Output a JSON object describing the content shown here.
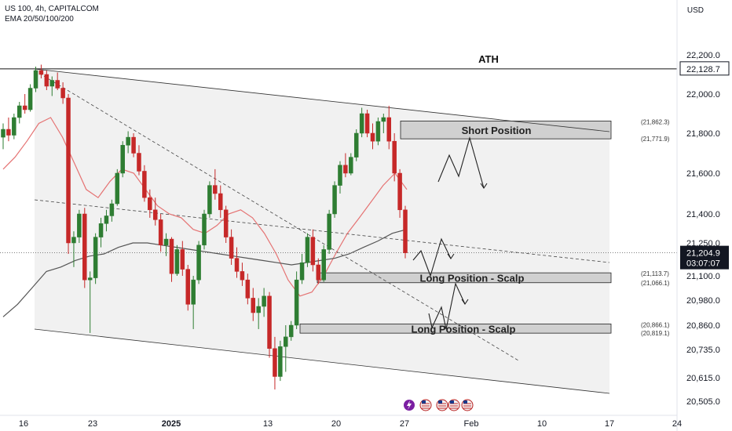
{
  "header": {
    "symbol_line": "US 100, 4h, CAPITALCOM",
    "indicator_line": "EMA 20/50/100/200",
    "currency": "USD"
  },
  "colors": {
    "up": "#2e7d32",
    "down": "#c62828",
    "ema_fast": "#e57373",
    "ema_slow": "#555555",
    "zone": "#d0d0d0",
    "channel": "#efefef",
    "price_tag": "#131722"
  },
  "chart_data": {
    "type": "candlestick",
    "symbol": "US 100",
    "timeframe": "4h",
    "y_tick_labels": [
      "22,200.0",
      "22,000.0",
      "21,800.0",
      "21,600.0",
      "21,400.0",
      "21,250.0",
      "21,100.0",
      "20,980.0",
      "20,860.0",
      "20,735.0",
      "20,615.0",
      "20,505.0"
    ],
    "x_tick_labels": [
      "16",
      "23",
      "2025",
      "13",
      "20",
      "27",
      "Feb",
      "10",
      "17",
      "24"
    ],
    "price_tags": [
      {
        "label": "22,128.7",
        "value": 22128.7,
        "style": "outline"
      },
      {
        "label": "21,204.9",
        "value": 21204.9,
        "style": "filled"
      },
      {
        "label": "03:07:07",
        "value": 21204.9,
        "style": "countdown"
      }
    ],
    "annotations": [
      {
        "text": "ATH",
        "value": 22128.7
      },
      {
        "text": "Short Position",
        "zone_top": 21862.3,
        "zone_bottom": 21771.9,
        "labels": [
          "(21,862.3)",
          "(21,771.9)"
        ]
      },
      {
        "text": "Long Position - Scalp",
        "zone_top": 21113.7,
        "zone_bottom": 21066.1,
        "labels": [
          "(21,113.7)",
          "(21,066.1)"
        ]
      },
      {
        "text": "Long Position - Scalp",
        "zone_top": 20866.1,
        "zone_bottom": 20819.1,
        "labels": [
          "(20,866.1)",
          "(20,819.1)"
        ]
      }
    ],
    "candles": [
      {
        "o": 21780,
        "h": 21850,
        "l": 21720,
        "c": 21820
      },
      {
        "o": 21820,
        "h": 21880,
        "l": 21760,
        "c": 21790
      },
      {
        "o": 21790,
        "h": 21900,
        "l": 21770,
        "c": 21880
      },
      {
        "o": 21880,
        "h": 21960,
        "l": 21850,
        "c": 21940
      },
      {
        "o": 21940,
        "h": 22000,
        "l": 21900,
        "c": 21920
      },
      {
        "o": 21920,
        "h": 22050,
        "l": 21910,
        "c": 22030
      },
      {
        "o": 22030,
        "h": 22140,
        "l": 22010,
        "c": 22120
      },
      {
        "o": 22120,
        "h": 22150,
        "l": 22080,
        "c": 22100
      },
      {
        "o": 22100,
        "h": 22120,
        "l": 22020,
        "c": 22040
      },
      {
        "o": 22040,
        "h": 22090,
        "l": 21990,
        "c": 22070
      },
      {
        "o": 22070,
        "h": 22110,
        "l": 22020,
        "c": 22030
      },
      {
        "o": 22030,
        "h": 22060,
        "l": 21950,
        "c": 21980
      },
      {
        "o": 21980,
        "h": 22000,
        "l": 21200,
        "c": 21250
      },
      {
        "o": 21250,
        "h": 21310,
        "l": 21140,
        "c": 21280
      },
      {
        "o": 21280,
        "h": 21420,
        "l": 21250,
        "c": 21400
      },
      {
        "o": 21400,
        "h": 21430,
        "l": 21040,
        "c": 21080
      },
      {
        "o": 21080,
        "h": 21120,
        "l": 20820,
        "c": 21090
      },
      {
        "o": 21090,
        "h": 21300,
        "l": 21060,
        "c": 21280
      },
      {
        "o": 21280,
        "h": 21380,
        "l": 21230,
        "c": 21350
      },
      {
        "o": 21350,
        "h": 21420,
        "l": 21310,
        "c": 21390
      },
      {
        "o": 21390,
        "h": 21470,
        "l": 21360,
        "c": 21450
      },
      {
        "o": 21450,
        "h": 21620,
        "l": 21440,
        "c": 21600
      },
      {
        "o": 21600,
        "h": 21760,
        "l": 21580,
        "c": 21740
      },
      {
        "o": 21740,
        "h": 21810,
        "l": 21700,
        "c": 21780
      },
      {
        "o": 21780,
        "h": 21800,
        "l": 21680,
        "c": 21700
      },
      {
        "o": 21700,
        "h": 21740,
        "l": 21590,
        "c": 21610
      },
      {
        "o": 21610,
        "h": 21640,
        "l": 21460,
        "c": 21480
      },
      {
        "o": 21480,
        "h": 21520,
        "l": 21380,
        "c": 21420
      },
      {
        "o": 21420,
        "h": 21480,
        "l": 21340,
        "c": 21370
      },
      {
        "o": 21370,
        "h": 21400,
        "l": 21210,
        "c": 21240
      },
      {
        "o": 21240,
        "h": 21300,
        "l": 21190,
        "c": 21270
      },
      {
        "o": 21270,
        "h": 21280,
        "l": 21070,
        "c": 21110
      },
      {
        "o": 21110,
        "h": 21240,
        "l": 21100,
        "c": 21220
      },
      {
        "o": 21220,
        "h": 21260,
        "l": 21100,
        "c": 21130
      },
      {
        "o": 21130,
        "h": 21150,
        "l": 20930,
        "c": 20960
      },
      {
        "o": 20960,
        "h": 21100,
        "l": 20840,
        "c": 21080
      },
      {
        "o": 21080,
        "h": 21260,
        "l": 21060,
        "c": 21240
      },
      {
        "o": 21240,
        "h": 21420,
        "l": 21220,
        "c": 21400
      },
      {
        "o": 21400,
        "h": 21560,
        "l": 21380,
        "c": 21540
      },
      {
        "o": 21540,
        "h": 21620,
        "l": 21470,
        "c": 21500
      },
      {
        "o": 21500,
        "h": 21540,
        "l": 21380,
        "c": 21420
      },
      {
        "o": 21420,
        "h": 21440,
        "l": 21250,
        "c": 21280
      },
      {
        "o": 21280,
        "h": 21320,
        "l": 21150,
        "c": 21180
      },
      {
        "o": 21180,
        "h": 21230,
        "l": 21090,
        "c": 21120
      },
      {
        "o": 21120,
        "h": 21160,
        "l": 21050,
        "c": 21080
      },
      {
        "o": 21080,
        "h": 21110,
        "l": 20960,
        "c": 20990
      },
      {
        "o": 20990,
        "h": 21040,
        "l": 20880,
        "c": 20920
      },
      {
        "o": 20920,
        "h": 20990,
        "l": 20840,
        "c": 20950
      },
      {
        "o": 20950,
        "h": 21040,
        "l": 20900,
        "c": 21000
      },
      {
        "o": 21000,
        "h": 21020,
        "l": 20700,
        "c": 20740
      },
      {
        "o": 20740,
        "h": 20800,
        "l": 20560,
        "c": 20620
      },
      {
        "o": 20620,
        "h": 20780,
        "l": 20600,
        "c": 20750
      },
      {
        "o": 20750,
        "h": 20860,
        "l": 20640,
        "c": 20800
      },
      {
        "o": 20800,
        "h": 20880,
        "l": 20780,
        "c": 20860
      },
      {
        "o": 20860,
        "h": 21120,
        "l": 20840,
        "c": 21080
      },
      {
        "o": 21080,
        "h": 21200,
        "l": 21060,
        "c": 21160
      },
      {
        "o": 21160,
        "h": 21300,
        "l": 21140,
        "c": 21280
      },
      {
        "o": 21280,
        "h": 21320,
        "l": 21120,
        "c": 21150
      },
      {
        "o": 21150,
        "h": 21180,
        "l": 21060,
        "c": 21080
      },
      {
        "o": 21080,
        "h": 21240,
        "l": 21070,
        "c": 21220
      },
      {
        "o": 21220,
        "h": 21420,
        "l": 21200,
        "c": 21400
      },
      {
        "o": 21400,
        "h": 21560,
        "l": 21380,
        "c": 21540
      },
      {
        "o": 21540,
        "h": 21660,
        "l": 21500,
        "c": 21640
      },
      {
        "o": 21640,
        "h": 21700,
        "l": 21580,
        "c": 21600
      },
      {
        "o": 21600,
        "h": 21700,
        "l": 21590,
        "c": 21680
      },
      {
        "o": 21680,
        "h": 21820,
        "l": 21660,
        "c": 21800
      },
      {
        "o": 21800,
        "h": 21930,
        "l": 21780,
        "c": 21900
      },
      {
        "o": 21900,
        "h": 21920,
        "l": 21780,
        "c": 21800
      },
      {
        "o": 21800,
        "h": 21850,
        "l": 21720,
        "c": 21760
      },
      {
        "o": 21760,
        "h": 21880,
        "l": 21740,
        "c": 21860
      },
      {
        "o": 21860,
        "h": 21900,
        "l": 21800,
        "c": 21880
      },
      {
        "o": 21880,
        "h": 21940,
        "l": 21720,
        "c": 21760
      },
      {
        "o": 21760,
        "h": 21800,
        "l": 21560,
        "c": 21600
      },
      {
        "o": 21600,
        "h": 21620,
        "l": 21380,
        "c": 21420
      },
      {
        "o": 21420,
        "h": 21440,
        "l": 21180,
        "c": 21204.9
      }
    ],
    "ema_20_50": [
      21620,
      21680,
      21760,
      21850,
      21880,
      21780,
      21650,
      21520,
      21480,
      21560,
      21620,
      21600,
      21520,
      21440,
      21400,
      21380,
      21320,
      21300,
      21340,
      21400,
      21420,
      21380,
      21300,
      21200,
      21080,
      21000,
      21020,
      21100,
      21200,
      21300,
      21380,
      21460,
      21540,
      21600,
      21520
    ],
    "ema_100_200": [
      20900,
      20960,
      21040,
      21120,
      21140,
      21170,
      21190,
      21200,
      21230,
      21250,
      21250,
      21240,
      21230,
      21220,
      21210,
      21200,
      21190,
      21180,
      21170,
      21160,
      21150,
      21160,
      21170,
      21180,
      21200,
      21230,
      21260,
      21300,
      21320
    ]
  }
}
